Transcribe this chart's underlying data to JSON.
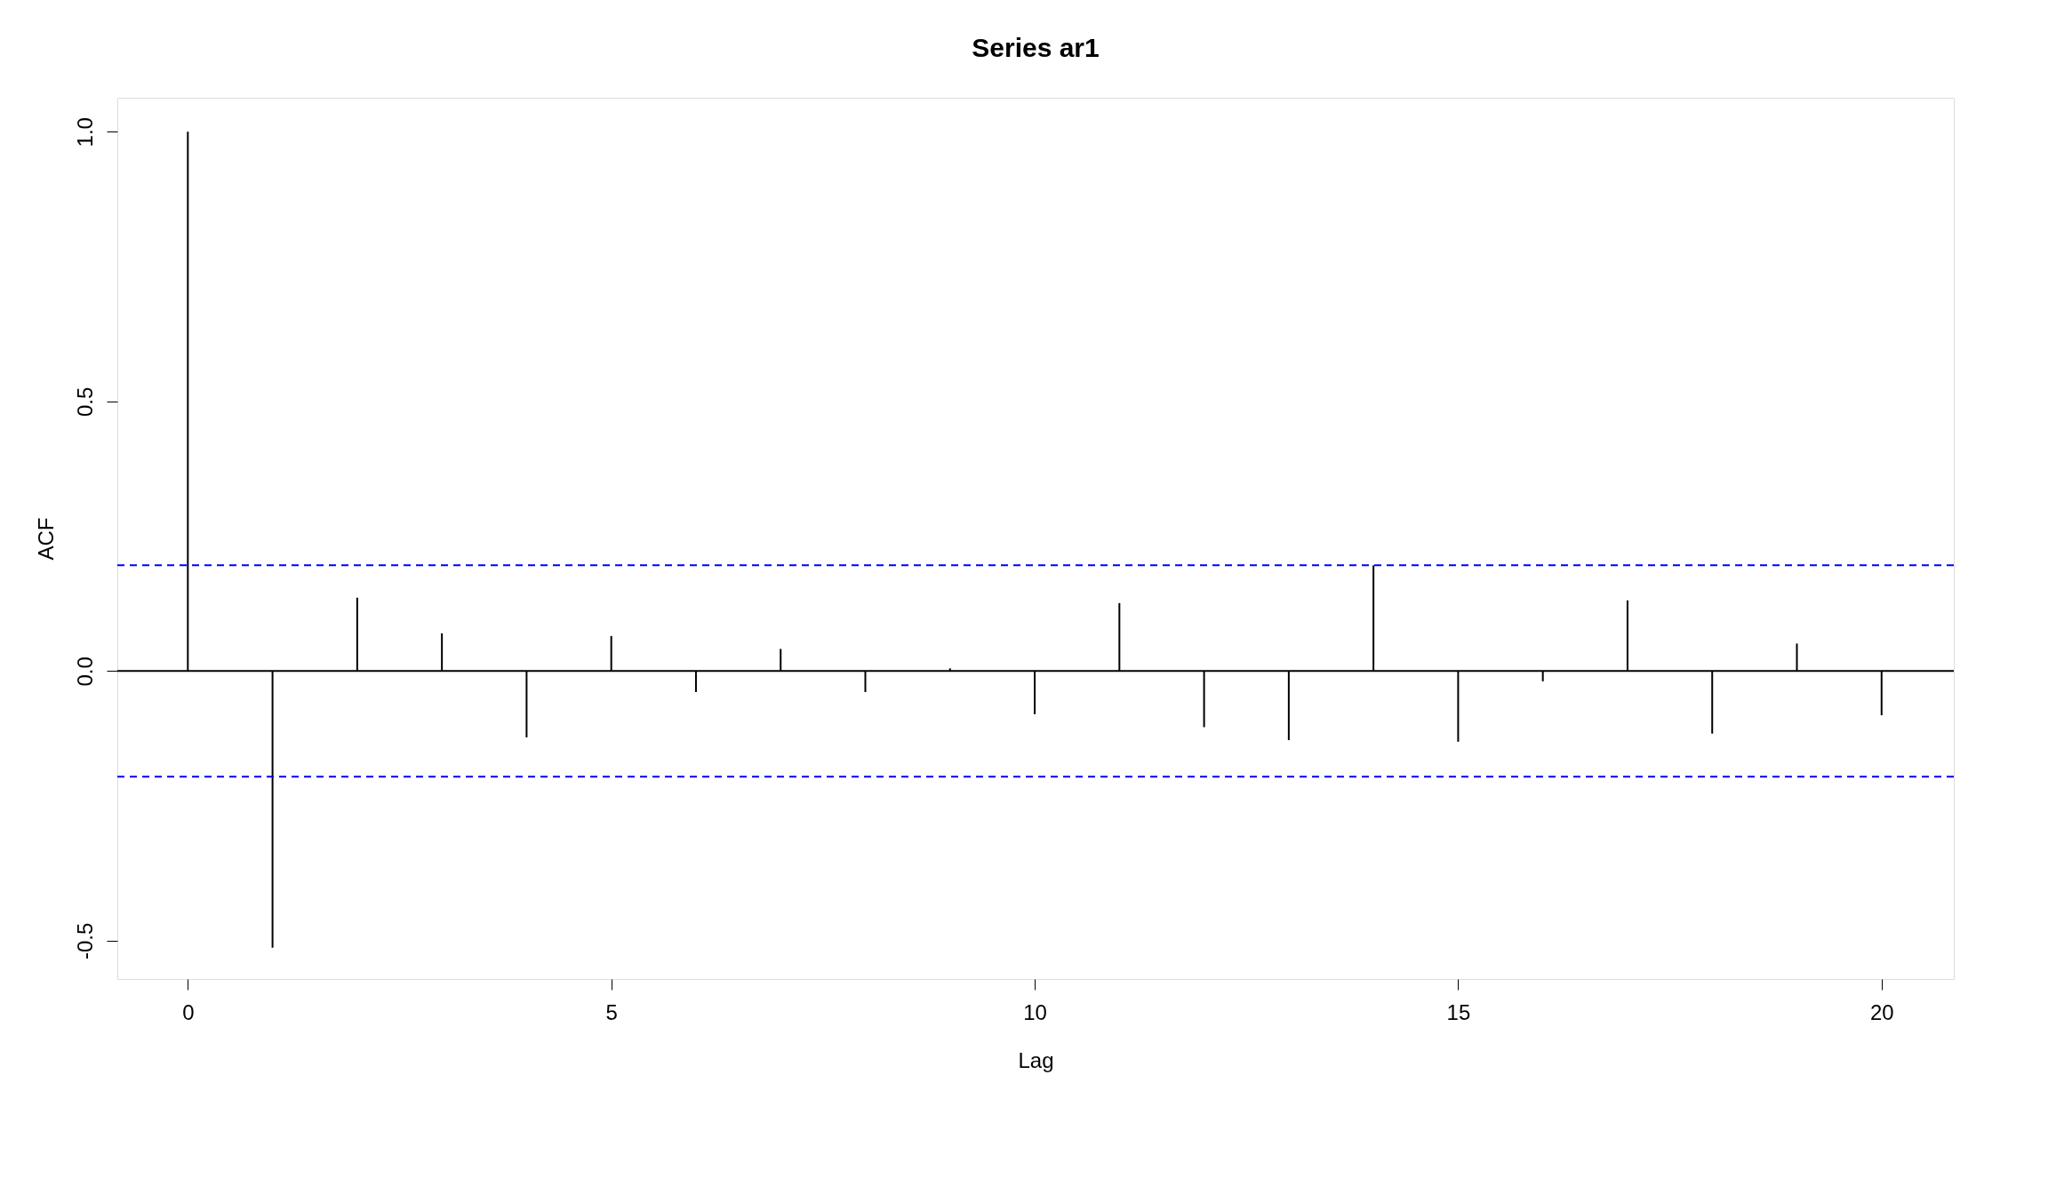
{
  "chart_data": {
    "type": "bar",
    "title": "Series  ar1",
    "xlabel": "Lag",
    "ylabel": "ACF",
    "x": [
      0,
      1,
      2,
      3,
      4,
      5,
      6,
      7,
      8,
      9,
      10,
      11,
      12,
      13,
      14,
      15,
      16,
      17,
      18,
      19,
      20
    ],
    "values": [
      1.0,
      -0.513,
      0.136,
      0.07,
      -0.123,
      0.065,
      -0.039,
      0.041,
      -0.039,
      0.005,
      -0.08,
      0.126,
      -0.104,
      -0.128,
      0.196,
      -0.131,
      -0.019,
      0.131,
      -0.116,
      0.051,
      -0.082
    ],
    "color": "#000000",
    "xlim": [
      -0.78,
      20.8
    ],
    "xticks": [
      0,
      5,
      10,
      15,
      20
    ],
    "ylim": [
      -0.571,
      1.063
    ],
    "yticks": [
      -0.5,
      {
        "value": 0,
        "label": "0.0"
      },
      0.5,
      {
        "value": 1,
        "label": "1.0"
      }
    ],
    "ref_lines": [
      {
        "axis": "y",
        "value": 0,
        "color": "#000000",
        "line_style": "solid"
      },
      {
        "axis": "y",
        "value": 0.196,
        "color": "#0000ff",
        "line_style": "dashed"
      },
      {
        "axis": "y",
        "value": -0.196,
        "color": "#0000ff",
        "line_style": "dashed"
      }
    ],
    "grid": false
  }
}
